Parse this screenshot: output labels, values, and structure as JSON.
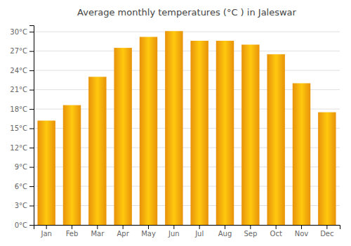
{
  "chart_data": {
    "type": "bar",
    "title": "Average monthly temperatures (°C ) in Jaleswar",
    "categories": [
      "Jan",
      "Feb",
      "Mar",
      "Apr",
      "May",
      "Jun",
      "Jul",
      "Aug",
      "Sep",
      "Oct",
      "Nov",
      "Dec"
    ],
    "values": [
      16.2,
      18.6,
      23.0,
      27.5,
      29.2,
      30.1,
      28.6,
      28.6,
      28.0,
      26.5,
      22.0,
      17.5
    ],
    "color": "#E8920A",
    "ylim": [
      0,
      31
    ],
    "yticks": [
      {
        "value": 0,
        "label": "0°C"
      },
      {
        "value": 3,
        "label": "3°C"
      },
      {
        "value": 6,
        "label": "6°C"
      },
      {
        "value": 9,
        "label": "9°C"
      },
      {
        "value": 12,
        "label": "12°C"
      },
      {
        "value": 15,
        "label": "15°C"
      },
      {
        "value": 18,
        "label": "18°C"
      },
      {
        "value": 21,
        "label": "21°C"
      },
      {
        "value": 24,
        "label": "24°C"
      },
      {
        "value": 27,
        "label": "27°C"
      },
      {
        "value": 30,
        "label": "30°C"
      }
    ],
    "grid": true
  }
}
